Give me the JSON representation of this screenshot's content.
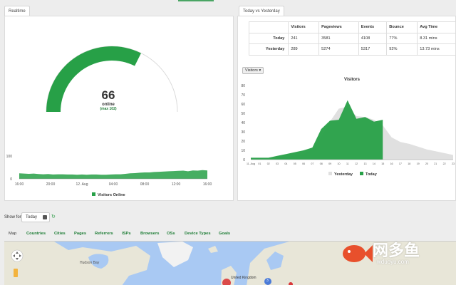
{
  "realtime": {
    "tab_label": "Realtime",
    "online_count": "66",
    "online_label": "online",
    "online_max": "(max 102)",
    "gauge_fraction": 0.647,
    "spark": {
      "y_ticks": [
        "100",
        "0"
      ],
      "x_ticks": [
        "16:00",
        "20:00",
        "12. Aug",
        "04:00",
        "08:00",
        "12:00",
        "16:00"
      ],
      "legend": "Visitors Online",
      "color": "#27a047"
    }
  },
  "compare": {
    "tab_label": "Today vs Yesterday",
    "headers": [
      "",
      "Visitors",
      "Pageviews",
      "Events",
      "Bounce",
      "Avg Time"
    ],
    "rows": [
      [
        "Today",
        "241",
        "3581",
        "4108",
        "77%",
        "8.31 mins"
      ],
      [
        "Yesterday",
        "289",
        "5274",
        "5317",
        "92%",
        "13.73 mins"
      ]
    ],
    "metric_select": "Visitors ▾"
  },
  "chart_data": [
    {
      "type": "area",
      "title": "",
      "xlabel": "",
      "ylabel": "",
      "ylim": [
        0,
        100
      ],
      "yticks": [
        0,
        100
      ],
      "xticks": [
        "16:00",
        "20:00",
        "12. Aug",
        "04:00",
        "08:00",
        "12:00",
        "16:00"
      ],
      "series": [
        {
          "name": "Visitors Online",
          "values": [
            24,
            23,
            22,
            23,
            21,
            20,
            21,
            19,
            20,
            20,
            19,
            19,
            18,
            19,
            18,
            19,
            19,
            18,
            18,
            19,
            20,
            20,
            22,
            24,
            25,
            27,
            28,
            28,
            30,
            31,
            32,
            33,
            34,
            35,
            36,
            33,
            37,
            36,
            38,
            37
          ]
        }
      ]
    },
    {
      "type": "area",
      "title": "Visitors",
      "xlabel": "",
      "ylabel": "",
      "ylim": [
        0,
        80
      ],
      "yticks": [
        0,
        10,
        20,
        30,
        40,
        50,
        60,
        70,
        80
      ],
      "categories": [
        "11. Aug",
        "01",
        "02",
        "03",
        "04",
        "05",
        "06",
        "07",
        "08",
        "09",
        "10",
        "11",
        "12",
        "13",
        "14",
        "15",
        "16",
        "17",
        "18",
        "19",
        "20",
        "21",
        "22",
        "23"
      ],
      "series": [
        {
          "name": "Yesterday",
          "values": [
            1,
            1,
            1,
            2,
            3,
            4,
            6,
            11,
            24,
            41,
            55,
            57,
            47,
            46,
            43,
            37,
            24,
            19,
            17,
            14,
            11,
            9,
            7,
            5
          ]
        },
        {
          "name": "Today",
          "values": [
            2,
            2,
            2,
            4,
            6,
            8,
            10,
            13,
            33,
            42,
            43,
            64,
            44,
            46,
            41,
            43,
            null,
            null,
            null,
            null,
            null,
            null,
            null,
            null
          ]
        }
      ],
      "legend_position": "bottom"
    }
  ],
  "filters": {
    "show_for_label": "Show for:",
    "date_value": "Today"
  },
  "map_tabs": [
    "Map",
    "Countries",
    "Cities",
    "Pages",
    "Referrers",
    "ISPs",
    "Browsers",
    "OSs",
    "Device Types",
    "Goals"
  ],
  "map": {
    "labels": [
      "Hudson Bay",
      "United Kingdom"
    ],
    "cluster_counts": [
      "3"
    ]
  },
  "watermark": {
    "title": "网多鱼",
    "url": "wduoyu.com"
  },
  "colors": {
    "today": "#27a047",
    "yesterday": "#e0e0e0",
    "accent": "#1e7d36"
  }
}
